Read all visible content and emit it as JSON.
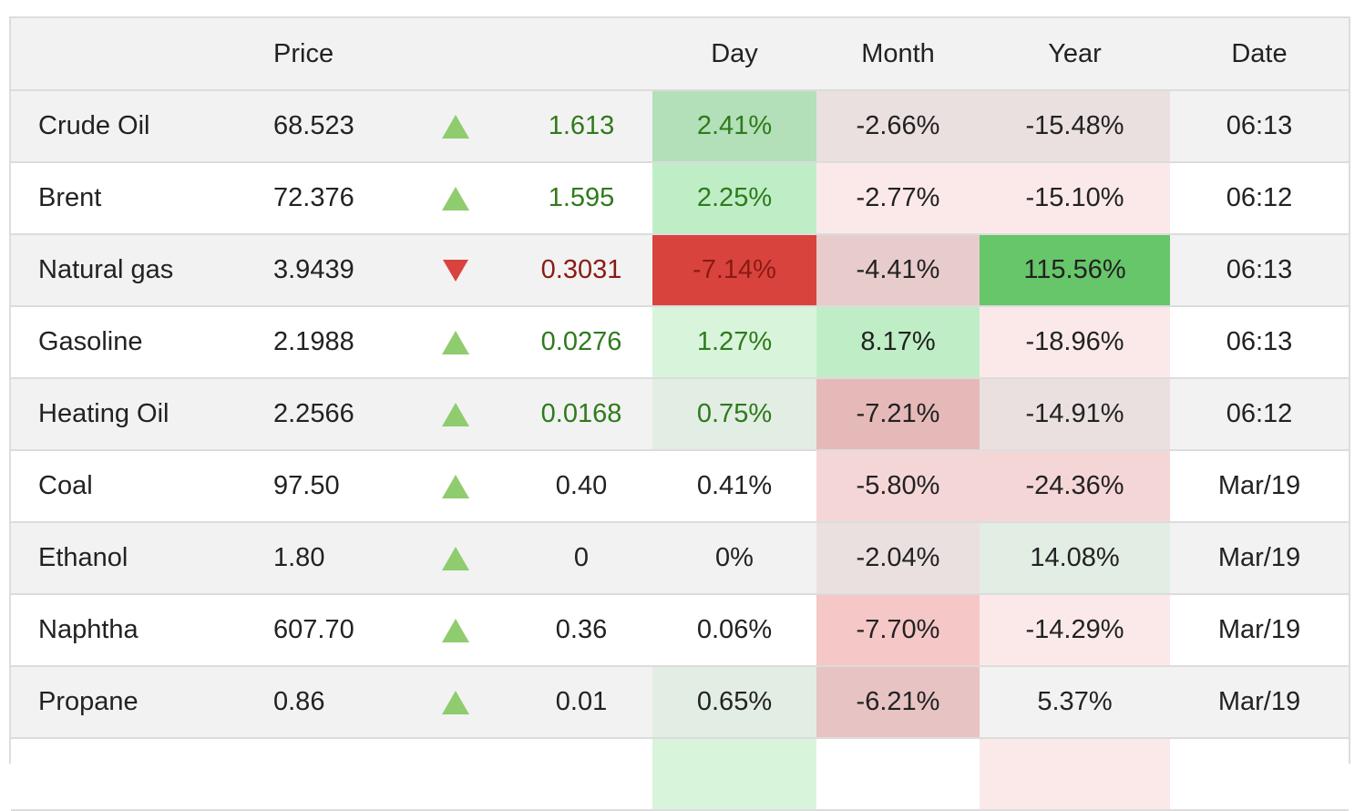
{
  "columns": {
    "price": "Price",
    "day": "Day",
    "month": "Month",
    "year": "Year",
    "date": "Date"
  },
  "colors": {
    "up_arrow": "#8fcc6f",
    "down_arrow": "#d9433d",
    "positive_text": "#2f7a1c",
    "negative_text": "#8b1a14",
    "strong_green": "#66c669",
    "strong_red": "#d9433d"
  },
  "rows": [
    {
      "name": "Crude Oil",
      "price": "68.523",
      "direction": "up",
      "change": "1.613",
      "day": "2.41%",
      "month": "-2.66%",
      "year": "-15.48%",
      "date": "06:13"
    },
    {
      "name": "Brent",
      "price": "72.376",
      "direction": "up",
      "change": "1.595",
      "day": "2.25%",
      "month": "-2.77%",
      "year": "-15.10%",
      "date": "06:12"
    },
    {
      "name": "Natural gas",
      "price": "3.9439",
      "direction": "down",
      "change": "0.3031",
      "day": "-7.14%",
      "month": "-4.41%",
      "year": "115.56%",
      "date": "06:13"
    },
    {
      "name": "Gasoline",
      "price": "2.1988",
      "direction": "up",
      "change": "0.0276",
      "day": "1.27%",
      "month": "8.17%",
      "year": "-18.96%",
      "date": "06:13"
    },
    {
      "name": "Heating Oil",
      "price": "2.2566",
      "direction": "up",
      "change": "0.0168",
      "day": "0.75%",
      "month": "-7.21%",
      "year": "-14.91%",
      "date": "06:12"
    },
    {
      "name": "Coal",
      "price": "97.50",
      "direction": "up",
      "change": "0.40",
      "day": "0.41%",
      "month": "-5.80%",
      "year": "-24.36%",
      "date": "Mar/19"
    },
    {
      "name": "Ethanol",
      "price": "1.80",
      "direction": "up",
      "change": "0",
      "day": "0%",
      "month": "-2.04%",
      "year": "14.08%",
      "date": "Mar/19"
    },
    {
      "name": "Naphtha",
      "price": "607.70",
      "direction": "up",
      "change": "0.36",
      "day": "0.06%",
      "month": "-7.70%",
      "year": "-14.29%",
      "date": "Mar/19"
    },
    {
      "name": "Propane",
      "price": "0.86",
      "direction": "up",
      "change": "0.01",
      "day": "0.65%",
      "month": "-6.21%",
      "year": "5.37%",
      "date": "Mar/19"
    }
  ]
}
